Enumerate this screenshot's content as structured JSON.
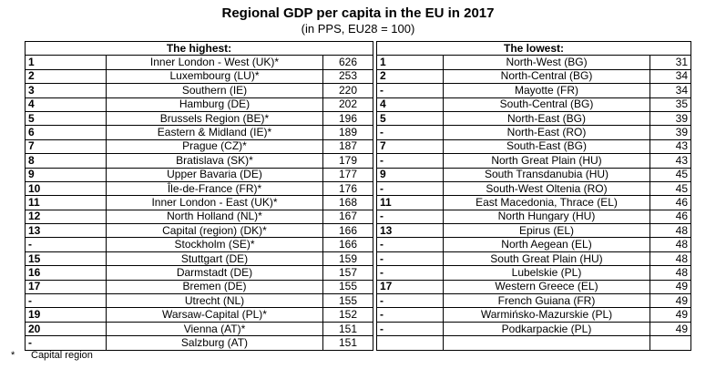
{
  "title": "Regional GDP per capita in the EU in 2017",
  "subtitle": "(in PPS, EU28 = 100)",
  "highest_header": "The highest:",
  "lowest_header": "The lowest:",
  "highest": [
    {
      "rank": "1",
      "region": "Inner London - West (UK)*",
      "value": "626"
    },
    {
      "rank": "2",
      "region": "Luxembourg (LU)*",
      "value": "253"
    },
    {
      "rank": "3",
      "region": "Southern (IE)",
      "value": "220"
    },
    {
      "rank": "4",
      "region": "Hamburg (DE)",
      "value": "202"
    },
    {
      "rank": "5",
      "region": "Brussels Region (BE)*",
      "value": "196"
    },
    {
      "rank": "6",
      "region": "Eastern & Midland (IE)*",
      "value": "189"
    },
    {
      "rank": "7",
      "region": "Prague (CZ)*",
      "value": "187"
    },
    {
      "rank": "8",
      "region": "Bratislava (SK)*",
      "value": "179"
    },
    {
      "rank": "9",
      "region": "Upper Bavaria (DE)",
      "value": "177"
    },
    {
      "rank": "10",
      "region": "Île-de-France (FR)*",
      "value": "176"
    },
    {
      "rank": "11",
      "region": "Inner London - East (UK)*",
      "value": "168"
    },
    {
      "rank": "12",
      "region": "North Holland (NL)*",
      "value": "167"
    },
    {
      "rank": "13",
      "region": "Capital (region) (DK)*",
      "value": "166"
    },
    {
      "rank": "-",
      "region": "Stockholm (SE)*",
      "value": "166"
    },
    {
      "rank": "15",
      "region": "Stuttgart (DE)",
      "value": "159"
    },
    {
      "rank": "16",
      "region": "Darmstadt (DE)",
      "value": "157"
    },
    {
      "rank": "17",
      "region": "Bremen (DE)",
      "value": "155"
    },
    {
      "rank": "-",
      "region": "Utrecht (NL)",
      "value": "155"
    },
    {
      "rank": "19",
      "region": "Warsaw-Capital (PL)*",
      "value": "152"
    },
    {
      "rank": "20",
      "region": "Vienna (AT)*",
      "value": "151"
    },
    {
      "rank": "-",
      "region": "Salzburg (AT)",
      "value": "151"
    }
  ],
  "lowest": [
    {
      "rank": "1",
      "region": "North-West (BG)",
      "value": "31"
    },
    {
      "rank": "2",
      "region": "North-Central (BG)",
      "value": "34"
    },
    {
      "rank": "-",
      "region": "Mayotte (FR)",
      "value": "34"
    },
    {
      "rank": "4",
      "region": "South-Central (BG)",
      "value": "35"
    },
    {
      "rank": "5",
      "region": "North-East (BG)",
      "value": "39"
    },
    {
      "rank": "-",
      "region": "North-East (RO)",
      "value": "39"
    },
    {
      "rank": "7",
      "region": "South-East (BG)",
      "value": "43"
    },
    {
      "rank": "-",
      "region": "North Great Plain (HU)",
      "value": "43"
    },
    {
      "rank": "9",
      "region": "South Transdanubia (HU)",
      "value": "45"
    },
    {
      "rank": "-",
      "region": "South-West Oltenia (RO)",
      "value": "45"
    },
    {
      "rank": "11",
      "region": "East Macedonia, Thrace (EL)",
      "value": "46"
    },
    {
      "rank": "-",
      "region": "North Hungary (HU)",
      "value": "46"
    },
    {
      "rank": "13",
      "region": "Epirus (EL)",
      "value": "48"
    },
    {
      "rank": "-",
      "region": "North Aegean (EL)",
      "value": "48"
    },
    {
      "rank": "-",
      "region": "South Great Plain (HU)",
      "value": "48"
    },
    {
      "rank": "-",
      "region": "Lubelskie (PL)",
      "value": "48"
    },
    {
      "rank": "17",
      "region": "Western Greece (EL)",
      "value": "49"
    },
    {
      "rank": "-",
      "region": "French Guiana (FR)",
      "value": "49"
    },
    {
      "rank": "-",
      "region": "Warmińsko-Mazurskie (PL)",
      "value": "49"
    },
    {
      "rank": "-",
      "region": "Podkarpackie (PL)",
      "value": "49"
    }
  ],
  "footnote": {
    "marker": "*",
    "text": "Capital region"
  }
}
